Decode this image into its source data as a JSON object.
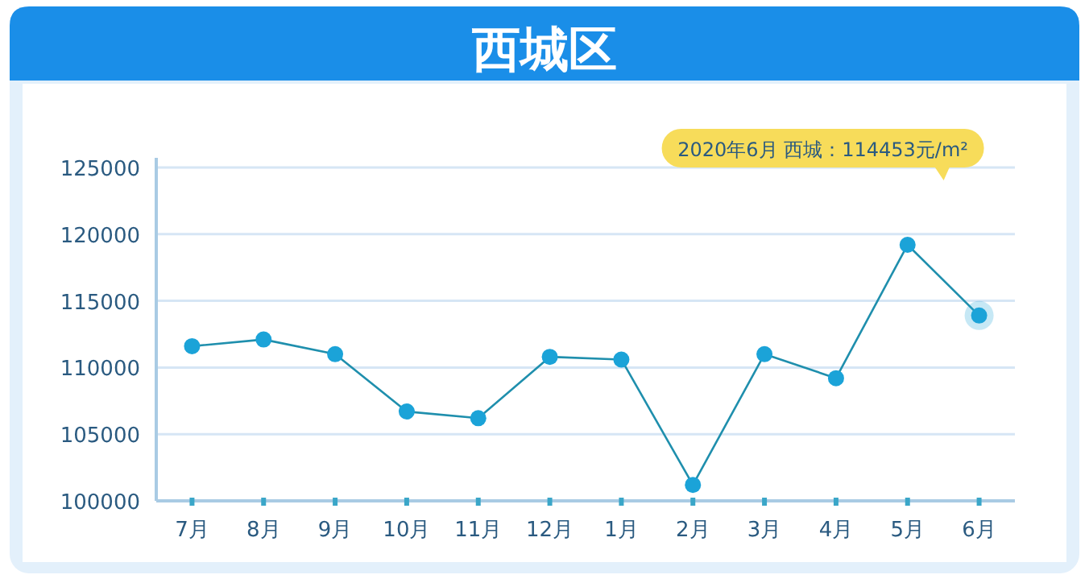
{
  "chart_data": {
    "type": "line",
    "title": "西城区",
    "categories": [
      "7月",
      "8月",
      "9月",
      "10月",
      "11月",
      "12月",
      "1月",
      "2月",
      "3月",
      "4月",
      "5月",
      "6月"
    ],
    "values": [
      111600,
      112100,
      111000,
      106700,
      106200,
      110800,
      110600,
      101200,
      111000,
      109200,
      119200,
      113900
    ],
    "color": "#1ba3d8",
    "marker": "circle",
    "grid": "y",
    "ylim": [
      100000,
      125000
    ],
    "yticks": [
      100000,
      105000,
      110000,
      115000,
      120000,
      125000
    ],
    "annotations": [
      "2020年6月 西城：114453元/m²"
    ]
  }
}
